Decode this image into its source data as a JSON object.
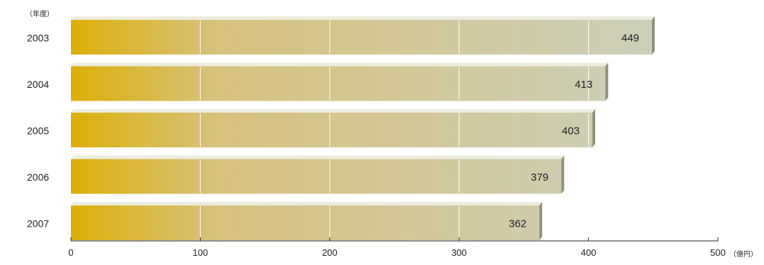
{
  "chart_data": {
    "type": "bar",
    "orientation": "horizontal",
    "categories": [
      "2003",
      "2004",
      "2005",
      "2006",
      "2007"
    ],
    "values": [
      449,
      413,
      403,
      379,
      362
    ],
    "title": "",
    "category_axis_unit": "（年度）",
    "value_axis_unit": "（億円）",
    "xlim": [
      0,
      500
    ],
    "x_ticks": [
      0,
      100,
      200,
      300,
      400,
      500
    ],
    "grid": true,
    "legend": "none",
    "colors": {
      "bar_start": "#dcaf08",
      "bar_mid": "#d7c27e",
      "bar_end": "#cccfbb",
      "bar_top": "#ecedde",
      "bar_side": "#8f907e",
      "grid": "#ffffff",
      "axis": "#222222",
      "text": "#222222"
    }
  }
}
